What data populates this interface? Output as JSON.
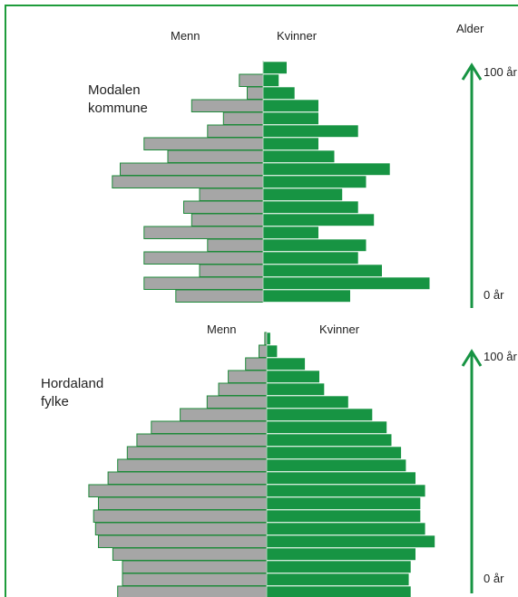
{
  "header_label": "Alder",
  "colors": {
    "men": "#a6a6a6",
    "men_border": "#1e8a3a",
    "women": "#179443",
    "frame": "#1e9c3b",
    "arrow": "#179443"
  },
  "chart_data": [
    {
      "type": "bar",
      "title_lines": [
        "Modalen",
        "kommune"
      ],
      "men_label": "Menn",
      "women_label": "Kvinner",
      "age_top_label": "100 år",
      "age_bottom_label": "0 år",
      "men": [
        0,
        3,
        2,
        9,
        5,
        7,
        15,
        12,
        18,
        19,
        8,
        10,
        9,
        15,
        7,
        15,
        8,
        15,
        11
      ],
      "women": [
        3,
        2,
        4,
        7,
        7,
        12,
        7,
        9,
        16,
        13,
        10,
        12,
        14,
        7,
        13,
        12,
        15,
        21,
        11
      ]
    },
    {
      "type": "bar",
      "title_lines": [
        "Hordaland",
        "fylke"
      ],
      "men_label": "Menn",
      "women_label": "Kvinner",
      "age_top_label": "100 år",
      "age_bottom_label": "0 år",
      "men": [
        0.2,
        0.8,
        2.2,
        4.0,
        5.0,
        6.2,
        9.0,
        12.0,
        13.5,
        14.5,
        15.5,
        16.5,
        18.5,
        17.5,
        18.0,
        17.8,
        17.5,
        16.0,
        15.0,
        15.0,
        15.5
      ],
      "women": [
        0.4,
        1.1,
        4.0,
        5.5,
        6.0,
        8.5,
        11.0,
        12.5,
        13.0,
        14.0,
        14.5,
        15.5,
        16.5,
        16.0,
        16.0,
        16.5,
        17.5,
        15.5,
        15.0,
        14.8,
        15.0
      ]
    }
  ]
}
